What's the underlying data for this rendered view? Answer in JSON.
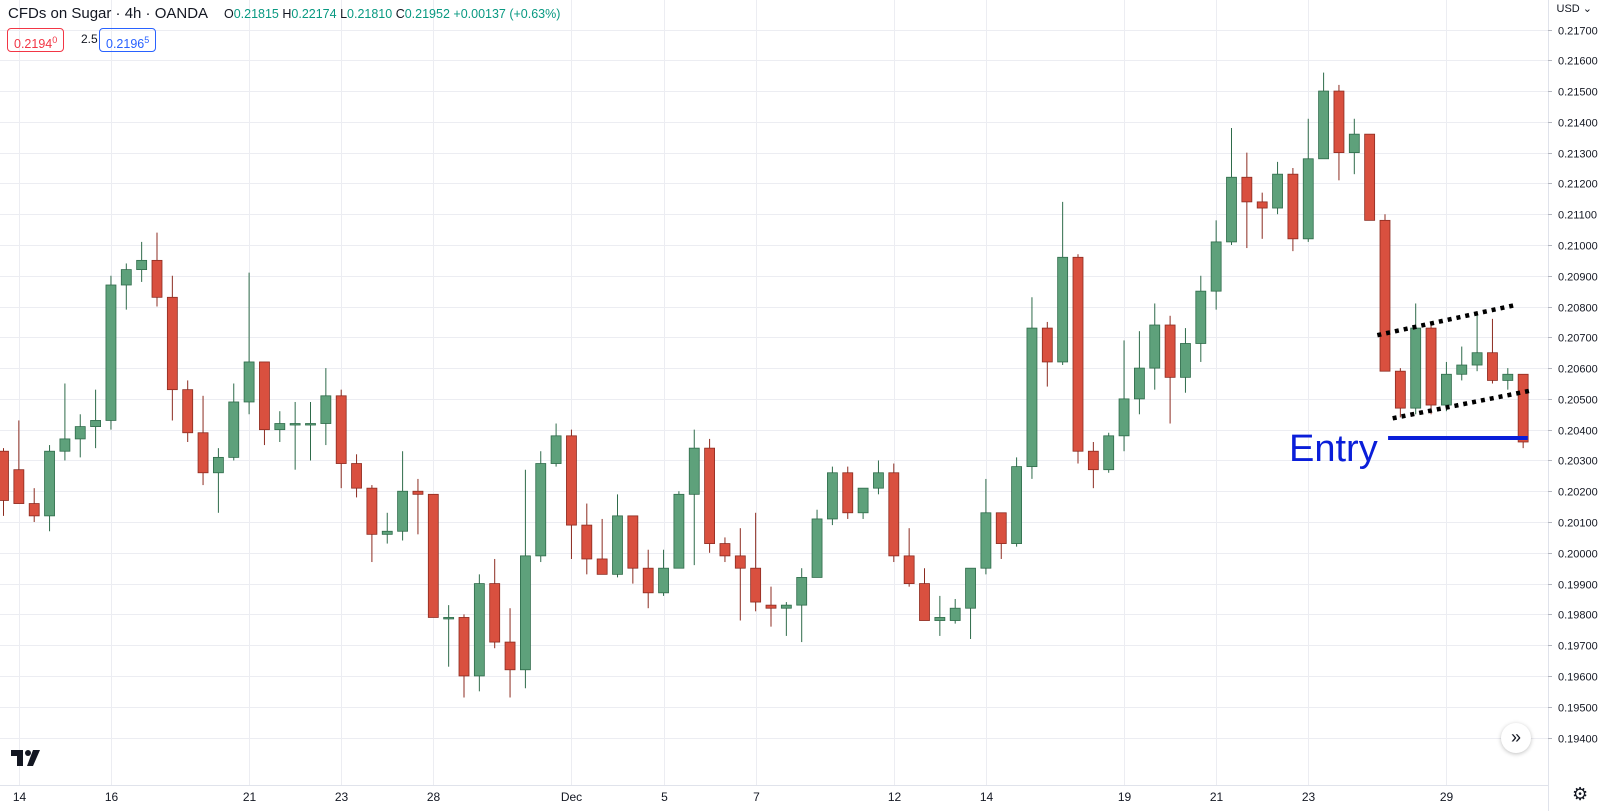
{
  "header": {
    "symbol_title": "CFDs on Sugar · 4h · OANDA",
    "open_label": "O",
    "open": "0.21815",
    "high_label": "H",
    "high": "0.22174",
    "low_label": "L",
    "low": "0.21810",
    "close_label": "C",
    "close": "0.21952",
    "change": "+0.00137 (+0.63%)"
  },
  "quote": {
    "bid_main": "0.2194",
    "bid_sup": "0",
    "spread": "2.5",
    "ask_main": "0.2196",
    "ask_sup": "5"
  },
  "currency_menu": "USD ⌄",
  "annotation": {
    "entry_label": "Entry"
  },
  "icons": {
    "scroll_to_latest": "double-chevron-right-icon",
    "settings": "gear-icon",
    "logo": "tradingview-logo-icon"
  },
  "colors": {
    "up": "#5ea17b",
    "down": "#d9503f",
    "grid": "#ecedf2",
    "annotation": "#0a1ed9",
    "trendline": "#000000"
  },
  "chart_data": {
    "type": "candlestick",
    "title": "CFDs on Sugar · 4h · OANDA",
    "currency": "USD",
    "ylim": [
      0.1935,
      0.2176
    ],
    "y_ticks": [
      "0.21700",
      "0.21600",
      "0.21500",
      "0.21400",
      "0.21300",
      "0.21200",
      "0.21100",
      "0.21000",
      "0.20900",
      "0.20800",
      "0.20700",
      "0.20600",
      "0.20500",
      "0.20400",
      "0.20300",
      "0.20200",
      "0.20100",
      "0.20000",
      "0.19900",
      "0.19800",
      "0.19700",
      "0.19600",
      "0.19500",
      "0.19400"
    ],
    "x_ticks": [
      {
        "label": "14",
        "index": 1
      },
      {
        "label": "16",
        "index": 7
      },
      {
        "label": "21",
        "index": 16
      },
      {
        "label": "23",
        "index": 22
      },
      {
        "label": "28",
        "index": 28
      },
      {
        "label": "Dec",
        "index": 37
      },
      {
        "label": "5",
        "index": 43
      },
      {
        "label": "7",
        "index": 49
      },
      {
        "label": "12",
        "index": 58
      },
      {
        "label": "14",
        "index": 64
      },
      {
        "label": "19",
        "index": 73
      },
      {
        "label": "21",
        "index": 79
      },
      {
        "label": "23",
        "index": 85
      },
      {
        "label": "29",
        "index": 94
      }
    ],
    "candles": [
      [
        0.2033,
        0.2034,
        0.2012,
        0.2017
      ],
      [
        0.2027,
        0.2043,
        0.2016,
        0.2016
      ],
      [
        0.2016,
        0.2021,
        0.201,
        0.2012
      ],
      [
        0.2012,
        0.2035,
        0.2007,
        0.2033
      ],
      [
        0.2033,
        0.2055,
        0.203,
        0.2037
      ],
      [
        0.2037,
        0.2045,
        0.2031,
        0.2041
      ],
      [
        0.2041,
        0.2053,
        0.2034,
        0.2043
      ],
      [
        0.2043,
        0.209,
        0.204,
        0.2087
      ],
      [
        0.2087,
        0.2094,
        0.2079,
        0.2092
      ],
      [
        0.2092,
        0.2101,
        0.2088,
        0.2095
      ],
      [
        0.2095,
        0.2104,
        0.208,
        0.2083
      ],
      [
        0.2083,
        0.209,
        0.2043,
        0.2053
      ],
      [
        0.2053,
        0.2056,
        0.2036,
        0.2039
      ],
      [
        0.2039,
        0.2051,
        0.2022,
        0.2026
      ],
      [
        0.2026,
        0.2034,
        0.2013,
        0.2031
      ],
      [
        0.2031,
        0.2055,
        0.203,
        0.2049
      ],
      [
        0.2049,
        0.2091,
        0.2045,
        0.2062
      ],
      [
        0.2062,
        0.2062,
        0.2035,
        0.204
      ],
      [
        0.204,
        0.2046,
        0.2036,
        0.2042
      ],
      [
        0.2042,
        0.2049,
        0.2027,
        0.2042
      ],
      [
        0.2042,
        0.2049,
        0.203,
        0.2042
      ],
      [
        0.2042,
        0.206,
        0.2035,
        0.2051
      ],
      [
        0.2051,
        0.2053,
        0.2021,
        0.2029
      ],
      [
        0.2029,
        0.2032,
        0.2018,
        0.2021
      ],
      [
        0.2021,
        0.2022,
        0.1997,
        0.2006
      ],
      [
        0.2006,
        0.2013,
        0.2003,
        0.2007
      ],
      [
        0.2007,
        0.2033,
        0.2004,
        0.202
      ],
      [
        0.202,
        0.2024,
        0.2006,
        0.2019
      ],
      [
        0.2019,
        0.2019,
        0.1979,
        0.1979
      ],
      [
        0.1979,
        0.1983,
        0.1963,
        0.1979
      ],
      [
        0.1979,
        0.198,
        0.1953,
        0.196
      ],
      [
        0.196,
        0.1993,
        0.1955,
        0.199
      ],
      [
        0.199,
        0.1998,
        0.1969,
        0.1971
      ],
      [
        0.1971,
        0.1982,
        0.1953,
        0.1962
      ],
      [
        0.1962,
        0.2027,
        0.1956,
        0.1999
      ],
      [
        0.1999,
        0.2033,
        0.1997,
        0.2029
      ],
      [
        0.2029,
        0.2042,
        0.2028,
        0.2038
      ],
      [
        0.2038,
        0.204,
        0.1998,
        0.2009
      ],
      [
        0.2009,
        0.2016,
        0.1993,
        0.1998
      ],
      [
        0.1998,
        0.2011,
        0.1993,
        0.1993
      ],
      [
        0.1993,
        0.2019,
        0.1992,
        0.2012
      ],
      [
        0.2012,
        0.2012,
        0.199,
        0.1995
      ],
      [
        0.1995,
        0.2001,
        0.1982,
        0.1987
      ],
      [
        0.1987,
        0.2001,
        0.1986,
        0.1995
      ],
      [
        0.1995,
        0.202,
        0.1995,
        0.2019
      ],
      [
        0.2019,
        0.204,
        0.1996,
        0.2034
      ],
      [
        0.2034,
        0.2037,
        0.2,
        0.2003
      ],
      [
        0.2003,
        0.2005,
        0.1997,
        0.1999
      ],
      [
        0.1999,
        0.2008,
        0.1978,
        0.1995
      ],
      [
        0.1995,
        0.2013,
        0.1981,
        0.1984
      ],
      [
        0.1983,
        0.1989,
        0.1976,
        0.1982
      ],
      [
        0.1982,
        0.1984,
        0.1973,
        0.1983
      ],
      [
        0.1983,
        0.1995,
        0.1971,
        0.1992
      ],
      [
        0.1992,
        0.2014,
        0.1992,
        0.2011
      ],
      [
        0.2011,
        0.2028,
        0.2009,
        0.2026
      ],
      [
        0.2026,
        0.2028,
        0.2011,
        0.2013
      ],
      [
        0.2013,
        0.2021,
        0.2011,
        0.2021
      ],
      [
        0.2021,
        0.203,
        0.2019,
        0.2026
      ],
      [
        0.2026,
        0.2029,
        0.1997,
        0.1999
      ],
      [
        0.1999,
        0.2008,
        0.1989,
        0.199
      ],
      [
        0.199,
        0.1995,
        0.1978,
        0.1978
      ],
      [
        0.1978,
        0.1986,
        0.1973,
        0.1979
      ],
      [
        0.1978,
        0.1985,
        0.1977,
        0.1982
      ],
      [
        0.1982,
        0.1994,
        0.1972,
        0.1995
      ],
      [
        0.1995,
        0.2024,
        0.1993,
        0.2013
      ],
      [
        0.2013,
        0.2013,
        0.1998,
        0.2003
      ],
      [
        0.2003,
        0.2031,
        0.2002,
        0.2028
      ],
      [
        0.2028,
        0.2083,
        0.2024,
        0.2073
      ],
      [
        0.2073,
        0.2075,
        0.2054,
        0.2062
      ],
      [
        0.2062,
        0.2114,
        0.2061,
        0.2096
      ],
      [
        0.2096,
        0.2097,
        0.2029,
        0.2033
      ],
      [
        0.2033,
        0.2036,
        0.2021,
        0.2027
      ],
      [
        0.2027,
        0.2039,
        0.2026,
        0.2038
      ],
      [
        0.2038,
        0.2069,
        0.2033,
        0.205
      ],
      [
        0.205,
        0.2072,
        0.2045,
        0.206
      ],
      [
        0.206,
        0.2081,
        0.2053,
        0.2074
      ],
      [
        0.2074,
        0.2077,
        0.2042,
        0.2057
      ],
      [
        0.2057,
        0.2073,
        0.2052,
        0.2068
      ],
      [
        0.2068,
        0.209,
        0.2062,
        0.2085
      ],
      [
        0.2085,
        0.2108,
        0.2079,
        0.2101
      ],
      [
        0.2101,
        0.2138,
        0.21,
        0.2122
      ],
      [
        0.2122,
        0.213,
        0.2099,
        0.2114
      ],
      [
        0.2114,
        0.2117,
        0.2102,
        0.2112
      ],
      [
        0.2112,
        0.2127,
        0.211,
        0.2123
      ],
      [
        0.2123,
        0.2125,
        0.2098,
        0.2102
      ],
      [
        0.2102,
        0.2141,
        0.2101,
        0.2128
      ],
      [
        0.2128,
        0.2156,
        0.2128,
        0.215
      ],
      [
        0.215,
        0.2152,
        0.2121,
        0.213
      ],
      [
        0.213,
        0.2141,
        0.2123,
        0.2136
      ],
      [
        0.2136,
        0.2136,
        0.2108,
        0.2108
      ],
      [
        0.2108,
        0.211,
        0.2059,
        0.2059
      ],
      [
        0.2059,
        0.206,
        0.2044,
        0.2047
      ],
      [
        0.2047,
        0.2081,
        0.2045,
        0.2073
      ],
      [
        0.2073,
        0.2075,
        0.2045,
        0.2048
      ],
      [
        0.2048,
        0.2062,
        0.2046,
        0.2058
      ],
      [
        0.2058,
        0.2067,
        0.2056,
        0.2061
      ],
      [
        0.2061,
        0.2078,
        0.2059,
        0.2065
      ],
      [
        0.2065,
        0.2076,
        0.2055,
        0.2056
      ],
      [
        0.2056,
        0.206,
        0.2053,
        0.2058
      ],
      [
        0.2058,
        0.2058,
        0.2034,
        0.2036
      ]
    ],
    "trendlines": [
      {
        "from": [
          89.5,
          0.20707
        ],
        "to": [
          98.5,
          0.20805
        ]
      },
      {
        "from": [
          90.5,
          0.20437
        ],
        "to": [
          99.5,
          0.20527
        ]
      }
    ],
    "entry_line": {
      "from_index": 90.2,
      "to_index": 99.3,
      "price": 0.20373
    }
  }
}
